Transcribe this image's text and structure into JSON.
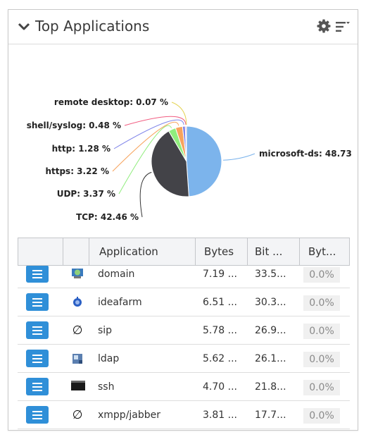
{
  "widget": {
    "title": "Top Applications",
    "icons": {
      "collapse": "chevron-down-icon",
      "settings": "gear-icon",
      "menu": "list-menu-icon"
    }
  },
  "chart_data": {
    "type": "pie",
    "slices": [
      {
        "label": "microsoft-ds: 48.73",
        "name": "microsoft-ds",
        "value": 48.73,
        "color": "#7cb4ec"
      },
      {
        "label": "TCP: 42.46 %",
        "name": "TCP",
        "value": 42.46,
        "color": "#434348"
      },
      {
        "label": "UDP: 3.37 %",
        "name": "UDP",
        "value": 3.37,
        "color": "#90ed7d"
      },
      {
        "label": "https: 3.22 %",
        "name": "https",
        "value": 3.22,
        "color": "#f7a35c"
      },
      {
        "label": "http: 1.28 %",
        "name": "http",
        "value": 1.28,
        "color": "#8085e9"
      },
      {
        "label": "shell/syslog: 0.48 %",
        "name": "shell/syslog",
        "value": 0.48,
        "color": "#f15c80"
      },
      {
        "label": "remote desktop: 0.07 %",
        "name": "remote desktop",
        "value": 0.07,
        "color": "#e4d354"
      }
    ]
  },
  "table": {
    "columns": [
      "",
      "",
      "Application",
      "Bytes",
      "Bit ...",
      "Byt..."
    ],
    "rows": [
      {
        "icon": "network-globe-icon",
        "application": "domain",
        "bytes": "7.19 ...",
        "bits": "33.5...",
        "pct": "0.0%"
      },
      {
        "icon": "ideafarm-icon",
        "application": "ideafarm",
        "bytes": "6.51 ...",
        "bits": "30.3...",
        "pct": "0.0%"
      },
      {
        "icon": "empty-set-icon",
        "application": "sip",
        "bytes": "5.78 ...",
        "bits": "26.9...",
        "pct": "0.0%"
      },
      {
        "icon": "ldap-directory-icon",
        "application": "ldap",
        "bytes": "5.62 ...",
        "bits": "26.1...",
        "pct": "0.0%"
      },
      {
        "icon": "terminal-icon",
        "application": "ssh",
        "bytes": "4.70 ...",
        "bits": "21.8...",
        "pct": "0.0%"
      },
      {
        "icon": "empty-set-icon",
        "application": "xmpp/jabber",
        "bytes": "3.81 ...",
        "bits": "17.7...",
        "pct": "0.0%"
      }
    ]
  }
}
